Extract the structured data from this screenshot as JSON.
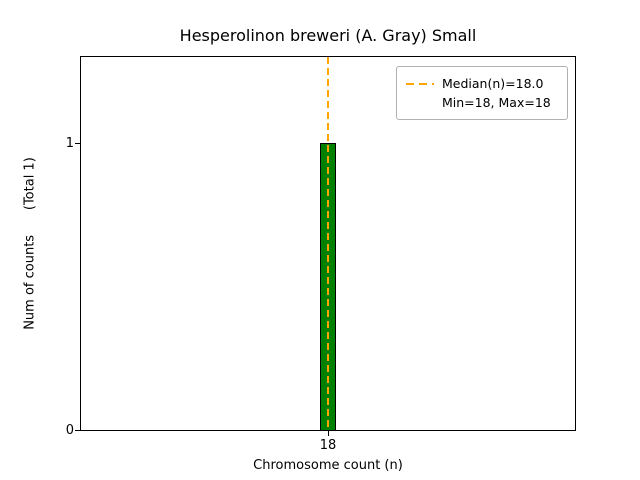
{
  "chart_data": {
    "type": "bar",
    "title": "Hesperolinon breweri (A. Gray) Small",
    "xlabel": "Chromosome count (n)",
    "ylabel": "Num of counts      (Total 1)",
    "categories": [
      18
    ],
    "values": [
      1
    ],
    "x_tick_labels": [
      "18"
    ],
    "y_tick_labels": [
      "0",
      "1"
    ],
    "ylim": [
      0,
      1.3
    ],
    "median": 18.0,
    "min": 18,
    "max": 18,
    "bar_color": "#008000",
    "bar_edge_color": "#000000",
    "median_line_color": "#FFA500",
    "grid": false,
    "legend_position": "upper right",
    "legend": {
      "entries": [
        {
          "label": "Median(n)=18.0",
          "sample": "orange-dashed-line"
        },
        {
          "label": "Min=18, Max=18",
          "sample": "none"
        }
      ]
    }
  }
}
